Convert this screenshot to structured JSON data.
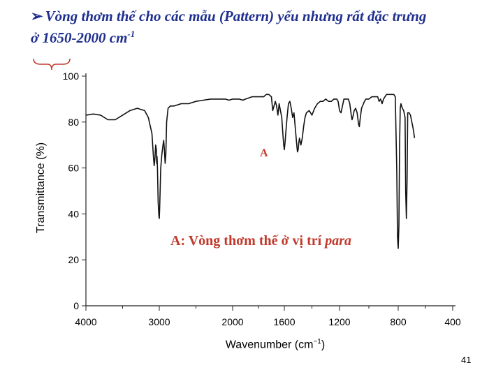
{
  "slide": {
    "title_bullet": "➢",
    "title_main": "Vòng thơm thế cho các mẫu (Pattern) yếu nhưng rất đặc trưng",
    "title_range": "ở 1650-2000 cm",
    "title_sup": "-1",
    "page_number": "41"
  },
  "annotations": {
    "peak_label": "A",
    "caption_prefix": "A: Vòng thơm thế ở vị trí ",
    "caption_emph": "para"
  },
  "chart_data": {
    "type": "line",
    "title": "",
    "xlabel": "Wavenumber (cm",
    "xlabel_sup": "−1",
    "ylabel": "Transmittance (%)",
    "x_reversed": true,
    "xlim": [
      4000,
      400
    ],
    "ylim": [
      0,
      100
    ],
    "x_ticks": [
      4000,
      3000,
      2000,
      1600,
      1200,
      800,
      400
    ],
    "y_ticks": [
      0,
      20,
      40,
      60,
      80,
      100
    ],
    "grid": false,
    "series": [
      {
        "color": "#111111",
        "points": [
          [
            4000,
            83
          ],
          [
            3900,
            83.5
          ],
          [
            3800,
            83
          ],
          [
            3700,
            81
          ],
          [
            3600,
            81
          ],
          [
            3500,
            83
          ],
          [
            3400,
            85
          ],
          [
            3300,
            86
          ],
          [
            3200,
            85
          ],
          [
            3150,
            82
          ],
          [
            3100,
            75
          ],
          [
            3080,
            65
          ],
          [
            3070,
            61
          ],
          [
            3060,
            64
          ],
          [
            3050,
            70
          ],
          [
            3040,
            68
          ],
          [
            3035,
            62
          ],
          [
            3030,
            65
          ],
          [
            3025,
            60
          ],
          [
            3015,
            45
          ],
          [
            3005,
            39
          ],
          [
            3000,
            38
          ],
          [
            2995,
            42
          ],
          [
            2980,
            60
          ],
          [
            2965,
            66
          ],
          [
            2950,
            70
          ],
          [
            2940,
            72
          ],
          [
            2930,
            68
          ],
          [
            2920,
            62
          ],
          [
            2910,
            66
          ],
          [
            2900,
            80
          ],
          [
            2880,
            86
          ],
          [
            2850,
            87
          ],
          [
            2800,
            87
          ],
          [
            2700,
            88
          ],
          [
            2600,
            88
          ],
          [
            2500,
            89
          ],
          [
            2400,
            89.5
          ],
          [
            2300,
            90
          ],
          [
            2200,
            90
          ],
          [
            2100,
            90
          ],
          [
            2050,
            89.5
          ],
          [
            2000,
            90
          ],
          [
            1950,
            90
          ],
          [
            1920,
            89.5
          ],
          [
            1900,
            90
          ],
          [
            1850,
            91
          ],
          [
            1800,
            91
          ],
          [
            1760,
            91
          ],
          [
            1740,
            92
          ],
          [
            1720,
            92
          ],
          [
            1700,
            91
          ],
          [
            1690,
            85
          ],
          [
            1680,
            87
          ],
          [
            1670,
            89
          ],
          [
            1660,
            87
          ],
          [
            1650,
            83
          ],
          [
            1640,
            88
          ],
          [
            1630,
            85
          ],
          [
            1620,
            82
          ],
          [
            1610,
            74
          ],
          [
            1605,
            70
          ],
          [
            1600,
            68
          ],
          [
            1595,
            71
          ],
          [
            1590,
            75
          ],
          [
            1580,
            82
          ],
          [
            1570,
            88
          ],
          [
            1560,
            89
          ],
          [
            1550,
            86
          ],
          [
            1540,
            82
          ],
          [
            1530,
            84
          ],
          [
            1520,
            77
          ],
          [
            1510,
            70
          ],
          [
            1505,
            67
          ],
          [
            1500,
            68
          ],
          [
            1495,
            71
          ],
          [
            1490,
            73
          ],
          [
            1480,
            70
          ],
          [
            1470,
            73
          ],
          [
            1460,
            78
          ],
          [
            1450,
            82
          ],
          [
            1440,
            84
          ],
          [
            1420,
            85
          ],
          [
            1400,
            83
          ],
          [
            1380,
            86
          ],
          [
            1360,
            88
          ],
          [
            1340,
            89
          ],
          [
            1320,
            89
          ],
          [
            1300,
            90
          ],
          [
            1280,
            89
          ],
          [
            1260,
            89
          ],
          [
            1240,
            90
          ],
          [
            1220,
            90
          ],
          [
            1210,
            89
          ],
          [
            1200,
            85
          ],
          [
            1190,
            84
          ],
          [
            1180,
            87
          ],
          [
            1170,
            90
          ],
          [
            1160,
            90
          ],
          [
            1150,
            90
          ],
          [
            1140,
            90
          ],
          [
            1130,
            88
          ],
          [
            1120,
            83
          ],
          [
            1115,
            81
          ],
          [
            1110,
            82
          ],
          [
            1100,
            85
          ],
          [
            1090,
            86
          ],
          [
            1080,
            84
          ],
          [
            1070,
            79
          ],
          [
            1065,
            78
          ],
          [
            1060,
            81
          ],
          [
            1050,
            86
          ],
          [
            1030,
            89
          ],
          [
            1020,
            90
          ],
          [
            1000,
            90
          ],
          [
            980,
            91
          ],
          [
            960,
            91
          ],
          [
            950,
            91
          ],
          [
            940,
            91
          ],
          [
            930,
            89
          ],
          [
            920,
            90
          ],
          [
            910,
            88
          ],
          [
            900,
            90
          ],
          [
            890,
            91
          ],
          [
            880,
            92
          ],
          [
            860,
            92
          ],
          [
            840,
            92
          ],
          [
            830,
            92
          ],
          [
            820,
            91
          ],
          [
            810,
            60
          ],
          [
            805,
            30
          ],
          [
            800,
            25
          ],
          [
            795,
            35
          ],
          [
            790,
            70
          ],
          [
            785,
            86
          ],
          [
            780,
            88
          ],
          [
            770,
            86
          ],
          [
            760,
            85
          ],
          [
            750,
            82
          ],
          [
            745,
            50
          ],
          [
            740,
            38
          ],
          [
            735,
            55
          ],
          [
            730,
            84
          ],
          [
            720,
            84
          ],
          [
            710,
            83
          ],
          [
            700,
            80
          ],
          [
            690,
            77
          ],
          [
            680,
            73
          ]
        ]
      }
    ]
  }
}
